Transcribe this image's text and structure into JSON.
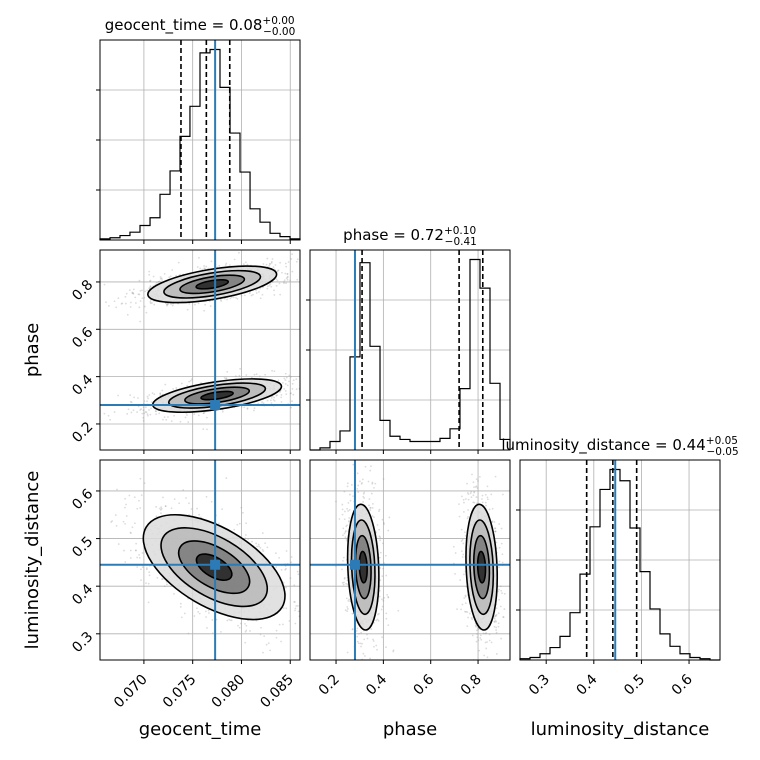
{
  "chart_data": {
    "type": "corner",
    "parameters": [
      "geocent_time",
      "phase",
      "luminosity_distance"
    ],
    "axis_labels": {
      "geocent_time": "geocent_time",
      "phase": "phase",
      "luminosity_distance": "luminosity_distance"
    },
    "ranges": {
      "geocent_time": [
        0.0655,
        0.086
      ],
      "phase": [
        0.09,
        0.935
      ],
      "luminosity_distance": [
        0.245,
        0.665
      ]
    },
    "ticks": {
      "geocent_time": [
        0.07,
        0.075,
        0.08,
        0.085
      ],
      "phase": [
        0.2,
        0.4,
        0.6,
        0.8
      ],
      "luminosity_distance": [
        0.3,
        0.4,
        0.5,
        0.6
      ]
    },
    "tick_labels": {
      "geocent_time": [
        "0.070",
        "0.075",
        "0.080",
        "0.085"
      ],
      "phase": [
        "0.2",
        "0.4",
        "0.6",
        "0.8"
      ],
      "luminosity_distance": [
        "0.3",
        "0.4",
        "0.5",
        "0.6"
      ]
    },
    "truths": {
      "geocent_time": 0.0773,
      "phase": 0.28,
      "luminosity_distance": 0.445
    },
    "titles": [
      {
        "param": "geocent_time",
        "prefix": "geocent_time = 0.08",
        "sup": "+0.00",
        "sub": "−0.00"
      },
      {
        "param": "phase",
        "prefix": "phase = 0.72",
        "sup": "+0.10",
        "sub": "−0.41"
      },
      {
        "param": "luminosity_distance",
        "prefix": "luminosity_distance = 0.44",
        "sup": "+0.05",
        "sub": "−0.05"
      }
    ],
    "quantiles": {
      "geocent_time": [
        0.0738,
        0.0764,
        0.0788
      ],
      "phase": [
        0.31,
        0.72,
        0.82
      ],
      "luminosity_distance": [
        0.385,
        0.44,
        0.49
      ]
    },
    "histograms": {
      "geocent_time": {
        "edges": [
          0.0655,
          0.06653,
          0.06755,
          0.06857,
          0.0696,
          0.07063,
          0.07165,
          0.07268,
          0.0737,
          0.07472,
          0.07575,
          0.07678,
          0.0778,
          0.07883,
          0.07985,
          0.08088,
          0.0819,
          0.08293,
          0.08395,
          0.08498,
          0.086
        ],
        "counts": [
          1,
          2,
          4,
          7,
          13,
          20,
          41,
          62,
          93,
          120,
          168,
          171,
          137,
          96,
          61,
          28,
          16,
          6,
          3,
          1
        ]
      },
      "phase": {
        "edges": [
          0.09,
          0.1323,
          0.1745,
          0.2168,
          0.259,
          0.3012,
          0.3435,
          0.3858,
          0.428,
          0.4703,
          0.5125,
          0.5547,
          0.597,
          0.6392,
          0.6815,
          0.7237,
          0.766,
          0.8082,
          0.8505,
          0.8928,
          0.935
        ],
        "counts": [
          0,
          2,
          8,
          18,
          88,
          177,
          98,
          28,
          13,
          10,
          8,
          8,
          8,
          11,
          20,
          58,
          180,
          153,
          63,
          10
        ]
      },
      "luminosity_distance": {
        "edges": [
          0.245,
          0.266,
          0.287,
          0.308,
          0.329,
          0.35,
          0.371,
          0.392,
          0.413,
          0.434,
          0.455,
          0.476,
          0.497,
          0.518,
          0.539,
          0.56,
          0.581,
          0.602,
          0.623,
          0.644,
          0.665
        ],
        "counts": [
          1,
          2,
          5,
          10,
          19,
          38,
          69,
          107,
          137,
          153,
          144,
          106,
          71,
          41,
          21,
          11,
          5,
          2,
          1,
          0
        ]
      }
    },
    "blobs_2d": {
      "phase_vs_geocent_time": [
        {
          "cx": 0.077,
          "cy": 0.79,
          "sx": 0.003,
          "sy": 0.035,
          "rho": 0.55
        },
        {
          "cx": 0.0775,
          "cy": 0.32,
          "sx": 0.003,
          "sy": 0.032,
          "rho": 0.55
        }
      ],
      "luminosity_distance_vs_geocent_time": [
        {
          "cx": 0.0772,
          "cy": 0.44,
          "sx": 0.0033,
          "sy": 0.05,
          "rho": -0.55
        }
      ],
      "luminosity_distance_vs_phase": [
        {
          "cx": 0.315,
          "cy": 0.44,
          "sx": 0.03,
          "sy": 0.06,
          "rho": -0.15
        },
        {
          "cx": 0.815,
          "cy": 0.44,
          "sx": 0.03,
          "sy": 0.06,
          "rho": -0.15
        }
      ]
    },
    "contour_levels_sigma": [
      0.5,
      1.0,
      1.5,
      2.0
    ],
    "colors": {
      "truth": "#2c7bb6",
      "hist": "#000000",
      "grid": "#b0b0b0",
      "scatter": "#9a9a9a"
    },
    "grid": true
  }
}
